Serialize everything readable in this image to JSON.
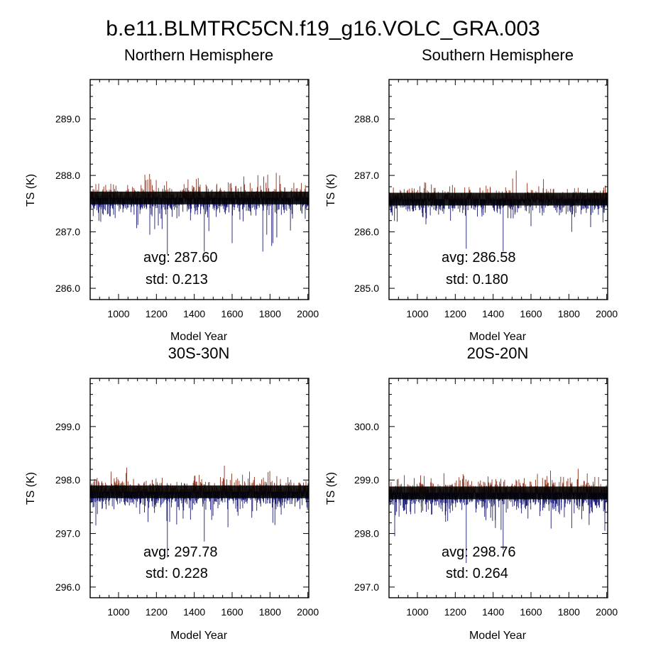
{
  "figure": {
    "title": "b.e11.BLMTRC5CN.f19_g16.VOLC_GRA.003"
  },
  "colors": {
    "above_mean": "#8b2e1a",
    "below_mean": "#1a1a70",
    "axes": "#000000"
  },
  "chart_data": [
    {
      "type": "bar",
      "title": "Northern Hemisphere",
      "xlabel": "Model Year",
      "ylabel": "TS (K)",
      "xlim": [
        850,
        2005
      ],
      "ylim": [
        285.8,
        289.7
      ],
      "xticks": [
        1000,
        1200,
        1400,
        1600,
        1800,
        2000
      ],
      "xtick_labels": [
        "1000",
        "1200",
        "1400",
        "1600",
        "1800",
        "2000"
      ],
      "yticks": [
        286.0,
        287.0,
        288.0,
        289.0
      ],
      "ytick_labels": [
        "286.0",
        "287.0",
        "288.0",
        "289.0"
      ],
      "baseline": 287.6,
      "avg_text": "avg: 287.60",
      "std_text": "std:  0.213",
      "avg": 287.6,
      "std": 0.213,
      "seed": 11,
      "years": [
        850,
        2005
      ],
      "dips": [
        {
          "year": 1165,
          "value": 286.95
        },
        {
          "year": 1230,
          "value": 287.05
        },
        {
          "year": 1258,
          "value": 286.6
        },
        {
          "year": 1453,
          "value": 286.65
        },
        {
          "year": 1600,
          "value": 286.8
        },
        {
          "year": 1762,
          "value": 286.65
        },
        {
          "year": 1783,
          "value": 286.95
        },
        {
          "year": 1809,
          "value": 286.75
        },
        {
          "year": 1815,
          "value": 286.8
        },
        {
          "year": 1836,
          "value": 286.9
        }
      ]
    },
    {
      "type": "bar",
      "title": "Southern Hemisphere",
      "xlabel": "Model Year",
      "ylabel": "TS (K)",
      "xlim": [
        850,
        2005
      ],
      "ylim": [
        284.8,
        288.7
      ],
      "xticks": [
        1000,
        1200,
        1400,
        1600,
        1800,
        2000
      ],
      "xtick_labels": [
        "1000",
        "1200",
        "1400",
        "1600",
        "1800",
        "2000"
      ],
      "yticks": [
        285.0,
        286.0,
        287.0,
        288.0
      ],
      "ytick_labels": [
        "285.0",
        "286.0",
        "287.0",
        "288.0"
      ],
      "baseline": 286.58,
      "avg_text": "avg: 286.58",
      "std_text": "std:  0.180",
      "avg": 286.58,
      "std": 0.18,
      "seed": 23,
      "years": [
        850,
        2005
      ],
      "dips": [
        {
          "year": 1258,
          "value": 285.7
        },
        {
          "year": 1453,
          "value": 285.65
        },
        {
          "year": 1600,
          "value": 286.1
        },
        {
          "year": 1815,
          "value": 286.0
        }
      ]
    },
    {
      "type": "bar",
      "title": "30S-30N",
      "xlabel": "Model Year",
      "ylabel": "TS (K)",
      "xlim": [
        850,
        2005
      ],
      "ylim": [
        295.8,
        299.9
      ],
      "xticks": [
        1000,
        1200,
        1400,
        1600,
        1800,
        2000
      ],
      "xtick_labels": [
        "1000",
        "1200",
        "1400",
        "1600",
        "1800",
        "2000"
      ],
      "yticks": [
        296.0,
        297.0,
        298.0,
        299.0
      ],
      "ytick_labels": [
        "296.0",
        "297.0",
        "298.0",
        "299.0"
      ],
      "baseline": 297.78,
      "avg_text": "avg: 297.78",
      "std_text": "std:  0.228",
      "avg": 297.78,
      "std": 0.228,
      "seed": 37,
      "years": [
        850,
        2005
      ],
      "dips": [
        {
          "year": 1258,
          "value": 296.55
        },
        {
          "year": 1453,
          "value": 296.85
        },
        {
          "year": 1815,
          "value": 297.2
        },
        {
          "year": 880,
          "value": 297.15
        }
      ]
    },
    {
      "type": "bar",
      "title": "20S-20N",
      "xlabel": "Model Year",
      "ylabel": "TS (K)",
      "xlim": [
        850,
        2005
      ],
      "ylim": [
        296.8,
        300.9
      ],
      "xticks": [
        1000,
        1200,
        1400,
        1600,
        1800,
        2000
      ],
      "xtick_labels": [
        "1000",
        "1200",
        "1400",
        "1600",
        "1800",
        "2000"
      ],
      "yticks": [
        297.0,
        298.0,
        299.0,
        300.0
      ],
      "ytick_labels": [
        "297.0",
        "298.0",
        "299.0",
        "300.0"
      ],
      "baseline": 298.76,
      "avg_text": "avg: 298.76",
      "std_text": "std:  0.264",
      "avg": 298.76,
      "std": 0.264,
      "seed": 53,
      "years": [
        850,
        2005
      ],
      "dips": [
        {
          "year": 880,
          "value": 297.95
        },
        {
          "year": 1258,
          "value": 297.45
        },
        {
          "year": 1453,
          "value": 297.7
        },
        {
          "year": 1815,
          "value": 298.1
        }
      ]
    }
  ]
}
